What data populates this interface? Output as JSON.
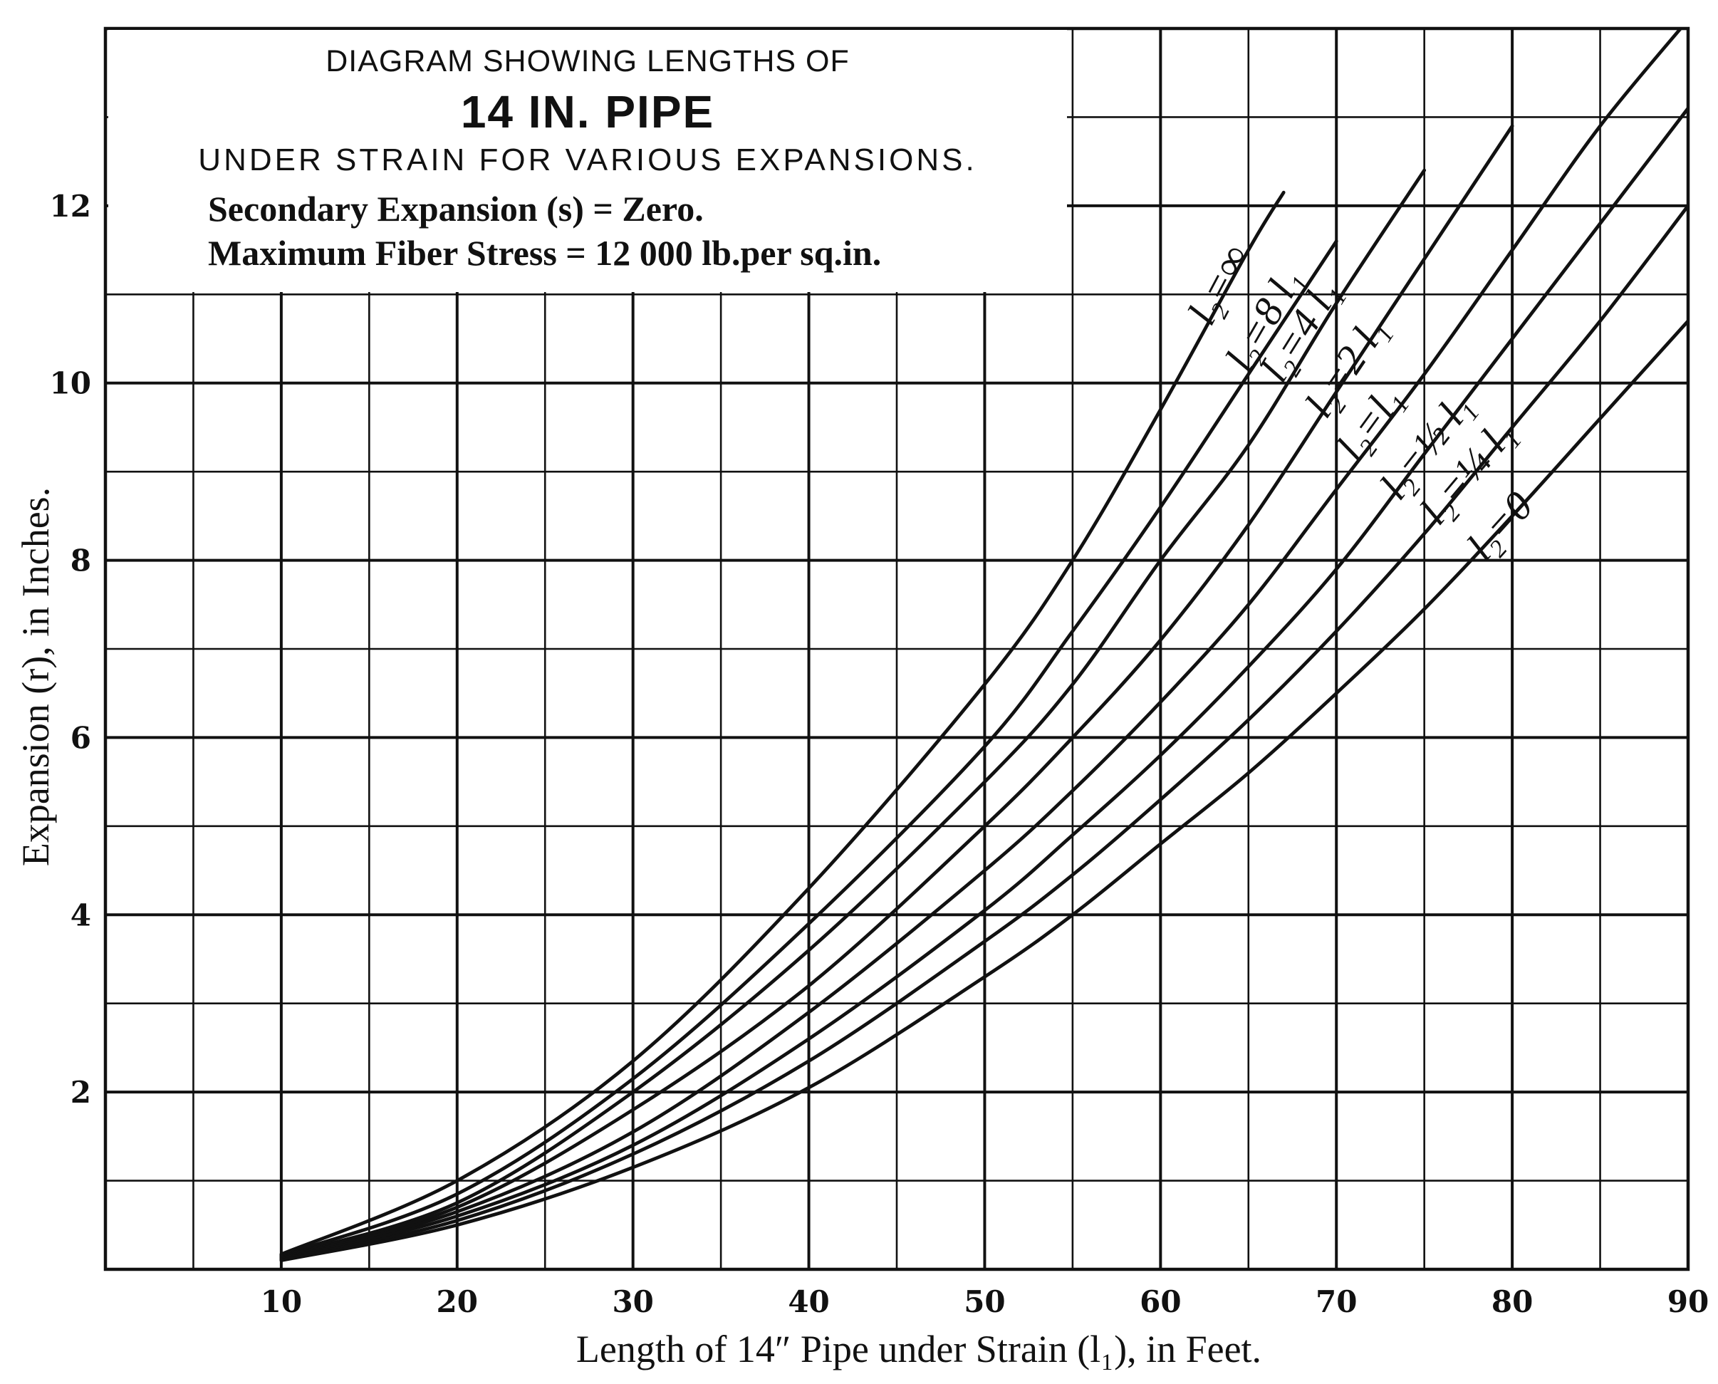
{
  "title_box": {
    "line1": "DIAGRAM SHOWING LENGTHS OF",
    "line2": "14 IN. PIPE",
    "line3": "UNDER STRAIN FOR VARIOUS EXPANSIONS.",
    "line4": "Secondary Expansion (s) = Zero.",
    "line5": "Maximum Fiber Stress = 12 000 lb.per sq.in."
  },
  "chart_data": {
    "type": "line",
    "xlabel": "Length of 14″ Pipe under Strain (l₁), in Feet.",
    "ylabel": "Expansion (r), in Inches.",
    "xlim": [
      0,
      90
    ],
    "ylim": [
      0,
      14
    ],
    "x_ticks": [
      10,
      20,
      30,
      40,
      50,
      60,
      70,
      80,
      90
    ],
    "x_tick_labels": [
      "10",
      "20",
      "30",
      "40",
      "50",
      "60",
      "70",
      "80",
      "90"
    ],
    "y_ticks": [
      2,
      4,
      6,
      8,
      10,
      12
    ],
    "y_tick_labels": [
      "2",
      "4",
      "6",
      "8",
      "10",
      "12"
    ],
    "grid": true,
    "grid_minor_x_step": 5,
    "grid_minor_y_step": 1,
    "series": [
      {
        "name": "l₂ = ∞",
        "x": [
          10,
          20,
          30,
          40,
          50,
          55,
          60,
          65,
          67
        ],
        "y": [
          0.17,
          1.0,
          2.35,
          4.3,
          6.6,
          8.0,
          9.7,
          11.5,
          12.15
        ]
      },
      {
        "name": "l₂ = 8 l₁",
        "x": [
          10,
          20,
          30,
          40,
          50,
          55,
          60,
          65,
          70
        ],
        "y": [
          0.16,
          0.85,
          2.15,
          3.9,
          5.9,
          7.2,
          8.6,
          10.1,
          11.6
        ]
      },
      {
        "name": "l₂ = 4 l₁",
        "x": [
          10,
          20,
          30,
          40,
          50,
          55,
          60,
          65,
          70,
          75
        ],
        "y": [
          0.15,
          0.75,
          2.0,
          3.6,
          5.5,
          6.6,
          8.0,
          9.3,
          10.9,
          12.4
        ]
      },
      {
        "name": "l₂ = 2 l₁",
        "x": [
          10,
          20,
          30,
          40,
          50,
          55,
          60,
          65,
          70,
          75,
          80
        ],
        "y": [
          0.14,
          0.7,
          1.8,
          3.2,
          5.0,
          6.0,
          7.1,
          8.4,
          9.9,
          11.4,
          12.9
        ]
      },
      {
        "name": "l₂ = l₁",
        "x": [
          10,
          20,
          30,
          40,
          50,
          55,
          60,
          65,
          70,
          75,
          80,
          85,
          90
        ],
        "y": [
          0.13,
          0.65,
          1.55,
          2.9,
          4.5,
          5.4,
          6.4,
          7.5,
          8.8,
          10.1,
          11.5,
          12.9,
          14.1
        ]
      },
      {
        "name": "l₂ = ½ l₁",
        "x": [
          10,
          20,
          30,
          40,
          50,
          55,
          60,
          65,
          70,
          75,
          80,
          85,
          90
        ],
        "y": [
          0.12,
          0.6,
          1.4,
          2.6,
          4.05,
          4.9,
          5.8,
          6.8,
          7.9,
          9.2,
          10.5,
          11.8,
          13.1
        ]
      },
      {
        "name": "l₂ = ¼ l₁",
        "x": [
          10,
          20,
          30,
          40,
          50,
          55,
          60,
          65,
          70,
          75,
          80,
          85,
          90
        ],
        "y": [
          0.11,
          0.55,
          1.3,
          2.35,
          3.7,
          4.45,
          5.3,
          6.2,
          7.2,
          8.3,
          9.5,
          10.7,
          12.0
        ]
      },
      {
        "name": "l₂ = 0",
        "x": [
          10,
          20,
          30,
          40,
          50,
          55,
          60,
          65,
          70,
          75,
          80,
          85,
          90
        ],
        "y": [
          0.1,
          0.5,
          1.15,
          2.05,
          3.3,
          4.0,
          4.8,
          5.6,
          6.5,
          7.45,
          8.5,
          9.6,
          10.7
        ]
      }
    ],
    "curve_labels": [
      {
        "series": 0,
        "text": "l₂=∞"
      },
      {
        "series": 1,
        "text": "l₂=8 l₁"
      },
      {
        "series": 2,
        "text": "l₂=4 l₁"
      },
      {
        "series": 3,
        "text": "l₂=2 l₁"
      },
      {
        "series": 4,
        "text": "l₂=l₁"
      },
      {
        "series": 5,
        "text": "l₂=½ l₁"
      },
      {
        "series": 6,
        "text": "l₂=¼ l₁"
      },
      {
        "series": 7,
        "text": "l₂=0"
      }
    ]
  }
}
